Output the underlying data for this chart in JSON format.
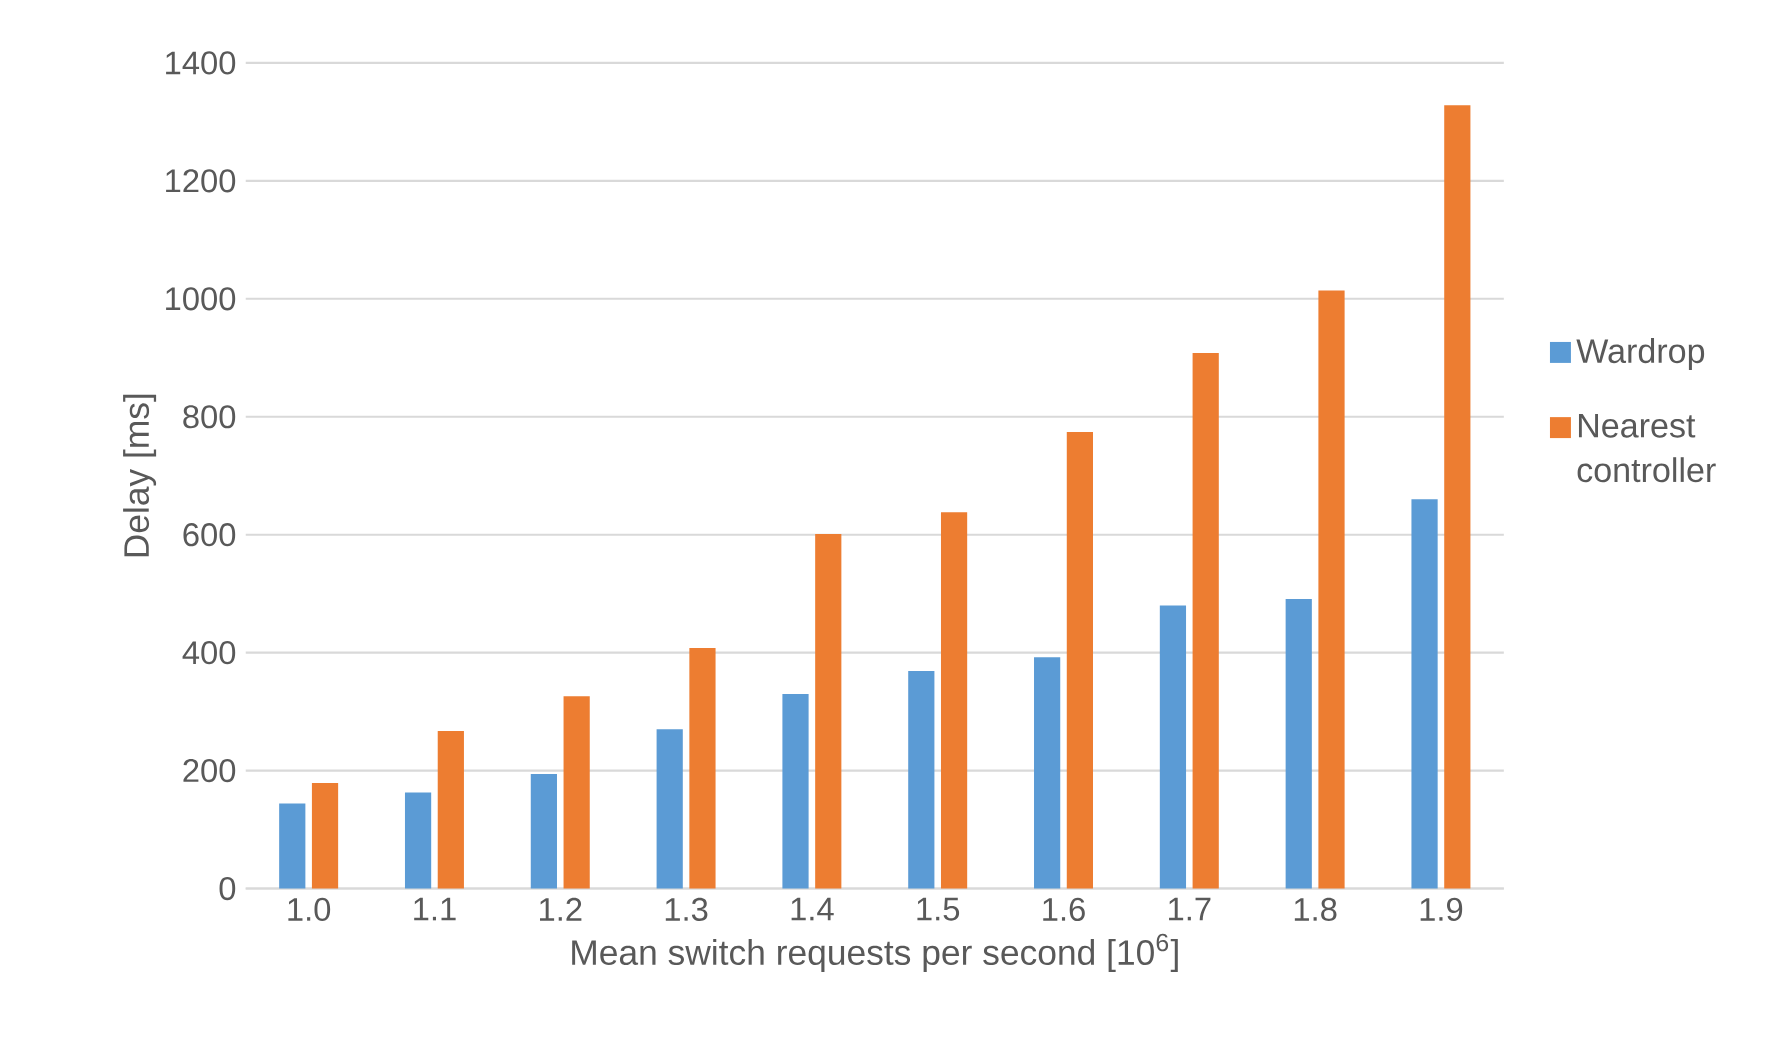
{
  "chart_data": {
    "type": "bar",
    "xlabel": "Mean switch requests per second [10$^{6}$]",
    "ylabel": "Delay [ms]",
    "categories": [
      "1.0",
      "1.1",
      "1.2",
      "1.3",
      "1.4",
      "1.5",
      "1.6",
      "1.7",
      "1.8",
      "1.9"
    ],
    "series": [
      {
        "name": "Wardrop",
        "color": "#5b9bd5",
        "values": [
          144,
          163,
          194,
          270,
          330,
          369,
          392,
          480,
          491,
          660
        ]
      },
      {
        "name": "Nearest controller",
        "color": "#ed7d31",
        "values": [
          179,
          267,
          326,
          408,
          601,
          638,
          774,
          908,
          1014,
          1328
        ]
      }
    ],
    "ylim": [
      0,
      1400
    ],
    "yticks": [
      0,
      200,
      400,
      600,
      800,
      1000,
      1200,
      1400
    ],
    "grid": "y",
    "legend": "right"
  }
}
